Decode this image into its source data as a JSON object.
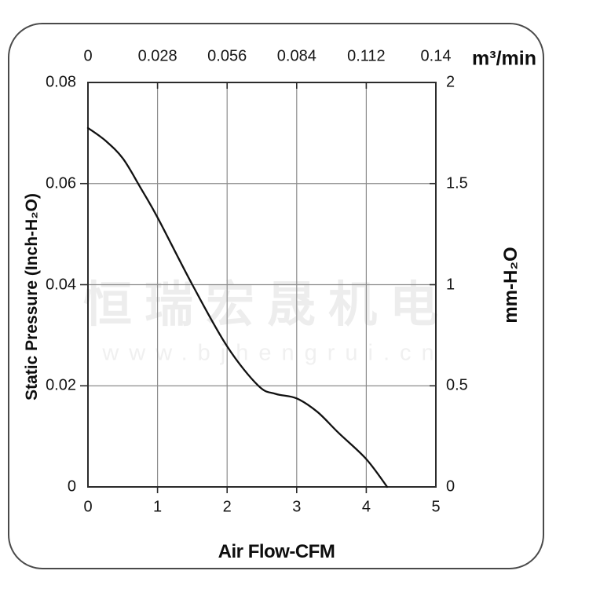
{
  "watermark": {
    "brand": "恒瑞宏晟机电",
    "url": "www.bjhengrui.cn"
  },
  "colors": {
    "panel_border": "#4a4a4a",
    "frame": "#2b2b2b",
    "grid": "#8c8c8c",
    "curve": "#111111",
    "text": "#141414",
    "watermark_brand": "#ededed",
    "watermark_url": "#f0f0f0"
  },
  "chart_data": {
    "type": "line",
    "title": "",
    "legend": "none",
    "grid": true,
    "axes": {
      "bottom": {
        "title": "Air Flow-CFM",
        "min": 0,
        "max": 5,
        "ticks": [
          {
            "label": "0",
            "value": 0
          },
          {
            "label": "1",
            "value": 1
          },
          {
            "label": "2",
            "value": 2
          },
          {
            "label": "3",
            "value": 3
          },
          {
            "label": "4",
            "value": 4
          },
          {
            "label": "5",
            "value": 5
          }
        ]
      },
      "top": {
        "title": "m³/min",
        "min": 0,
        "max": 0.14,
        "ticks": [
          {
            "label": "0",
            "value": 0
          },
          {
            "label": "0.028",
            "value": 0.028
          },
          {
            "label": "0.056",
            "value": 0.056
          },
          {
            "label": "0.084",
            "value": 0.084
          },
          {
            "label": "0.112",
            "value": 0.112
          },
          {
            "label": "0.14",
            "value": 0.14
          }
        ]
      },
      "left": {
        "title": "Static Pressure (Inch-H₂O)",
        "min": 0,
        "max": 0.08,
        "ticks": [
          {
            "label": "0.08",
            "value": 0.08
          },
          {
            "label": "0.06",
            "value": 0.06
          },
          {
            "label": "0.04",
            "value": 0.04
          },
          {
            "label": "0.02",
            "value": 0.02
          },
          {
            "label": "0",
            "value": 0
          }
        ]
      },
      "right": {
        "title": "mm-H₂O",
        "min": 0,
        "max": 2,
        "ticks": [
          {
            "label": "2",
            "value": 2
          },
          {
            "label": "1.5",
            "value": 1.5
          },
          {
            "label": "1",
            "value": 1
          },
          {
            "label": "0.5",
            "value": 0.5
          },
          {
            "label": "0",
            "value": 0
          }
        ]
      }
    },
    "gridlines": {
      "x_values_cfm": [
        1,
        2,
        3,
        4
      ],
      "y_values_inch": [
        0.02,
        0.04,
        0.06
      ]
    },
    "series": [
      {
        "name": "static-pressure-vs-airflow",
        "color": "#111111",
        "points_cfm_inchH2O": [
          [
            0,
            0.071
          ],
          [
            0.25,
            0.0685
          ],
          [
            0.5,
            0.065
          ],
          [
            0.75,
            0.0593
          ],
          [
            1.0,
            0.0533
          ],
          [
            1.5,
            0.04
          ],
          [
            2.0,
            0.0278
          ],
          [
            2.45,
            0.02
          ],
          [
            2.7,
            0.0184
          ],
          [
            3.0,
            0.0175
          ],
          [
            3.3,
            0.0148
          ],
          [
            3.6,
            0.0107
          ],
          [
            4.0,
            0.0055
          ],
          [
            4.3,
            0
          ]
        ]
      }
    ]
  }
}
